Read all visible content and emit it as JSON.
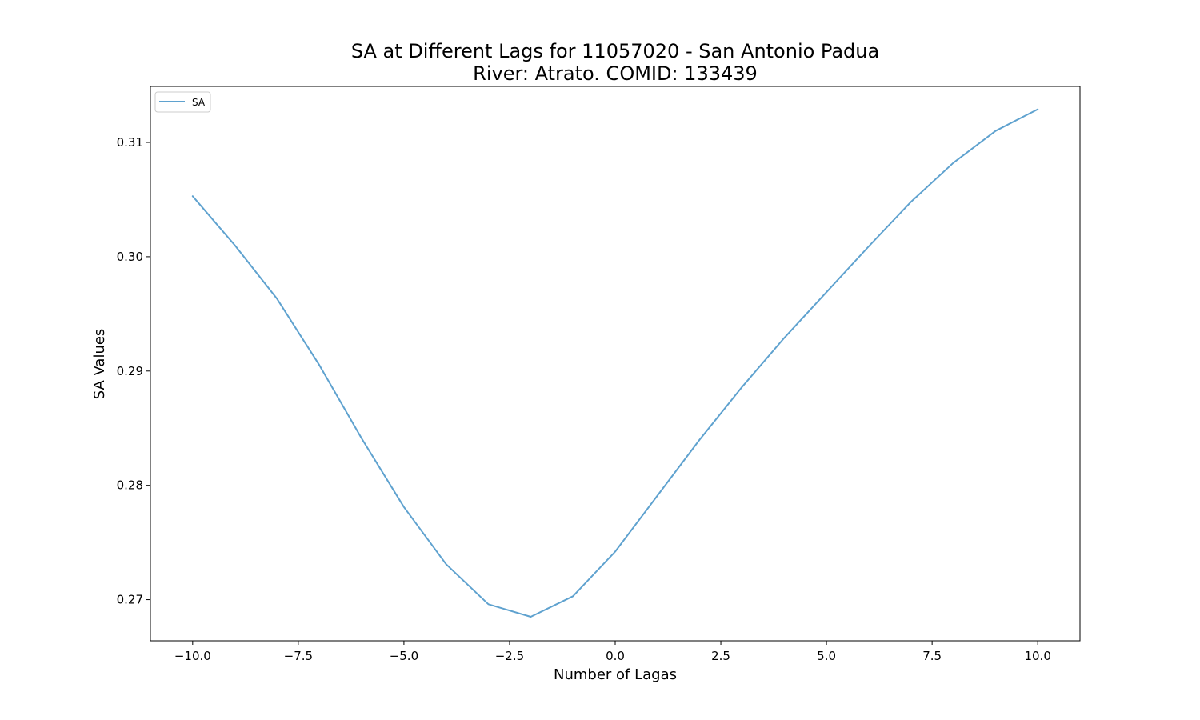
{
  "chart_data": {
    "type": "line",
    "title": "SA at Different Lags for 11057020 - San Antonio Padua",
    "subtitle": "River: Atrato. COMID: 133439",
    "xlabel": "Number of Lagas",
    "ylabel": "SA Values",
    "xlim": [
      -11,
      11
    ],
    "ylim": [
      0.2664,
      0.3149
    ],
    "grid": false,
    "legend": "upper-left",
    "x_ticks": [
      -10,
      -7.5,
      -5,
      -2.5,
      0,
      2.5,
      5,
      7.5,
      10
    ],
    "x_tick_labels": [
      "−10.0",
      "−7.5",
      "−5.0",
      "−2.5",
      "0.0",
      "2.5",
      "5.0",
      "7.5",
      "10.0"
    ],
    "y_ticks": [
      0.27,
      0.28,
      0.29,
      0.3,
      0.31
    ],
    "y_tick_labels": [
      "0.27",
      "0.28",
      "0.29",
      "0.30",
      "0.31"
    ],
    "x": [
      -10,
      -9,
      -8,
      -7,
      -6,
      -5,
      -4,
      -3,
      -2,
      -1,
      0,
      1,
      2,
      3,
      4,
      5,
      6,
      7,
      8,
      9,
      10
    ],
    "series": [
      {
        "name": "SA",
        "color": "#5fa2cf",
        "values": [
          0.3053,
          0.301,
          0.2963,
          0.2905,
          0.2841,
          0.2781,
          0.2731,
          0.2696,
          0.2685,
          0.2703,
          0.2742,
          0.2791,
          0.284,
          0.2886,
          0.2929,
          0.2969,
          0.3009,
          0.3048,
          0.3082,
          0.311,
          0.3129
        ]
      }
    ]
  }
}
